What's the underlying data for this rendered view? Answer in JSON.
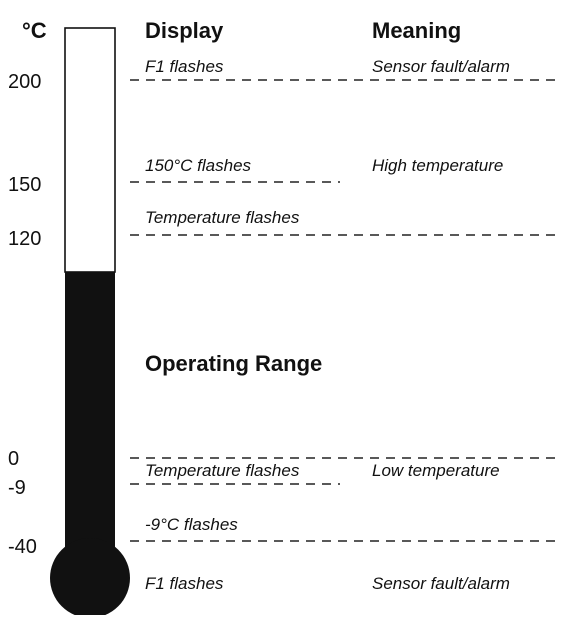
{
  "unit": "°C",
  "headers": {
    "display": "Display",
    "meaning": "Meaning"
  },
  "scale": [
    200,
    150,
    120,
    0,
    -9,
    -40
  ],
  "rows": [
    {
      "display": "F1 flashes",
      "meaning": "Sensor fault/alarm"
    },
    {
      "display": "150°C flashes",
      "meaning": "High temperature"
    },
    {
      "display": "Temperature flashes"
    },
    {
      "display": "Temperature flashes",
      "meaning": "Low temperature"
    },
    {
      "display": "-9°C flashes"
    },
    {
      "display": "F1 flashes",
      "meaning": "Sensor fault/alarm"
    }
  ],
  "operating_range": "Operating Range"
}
